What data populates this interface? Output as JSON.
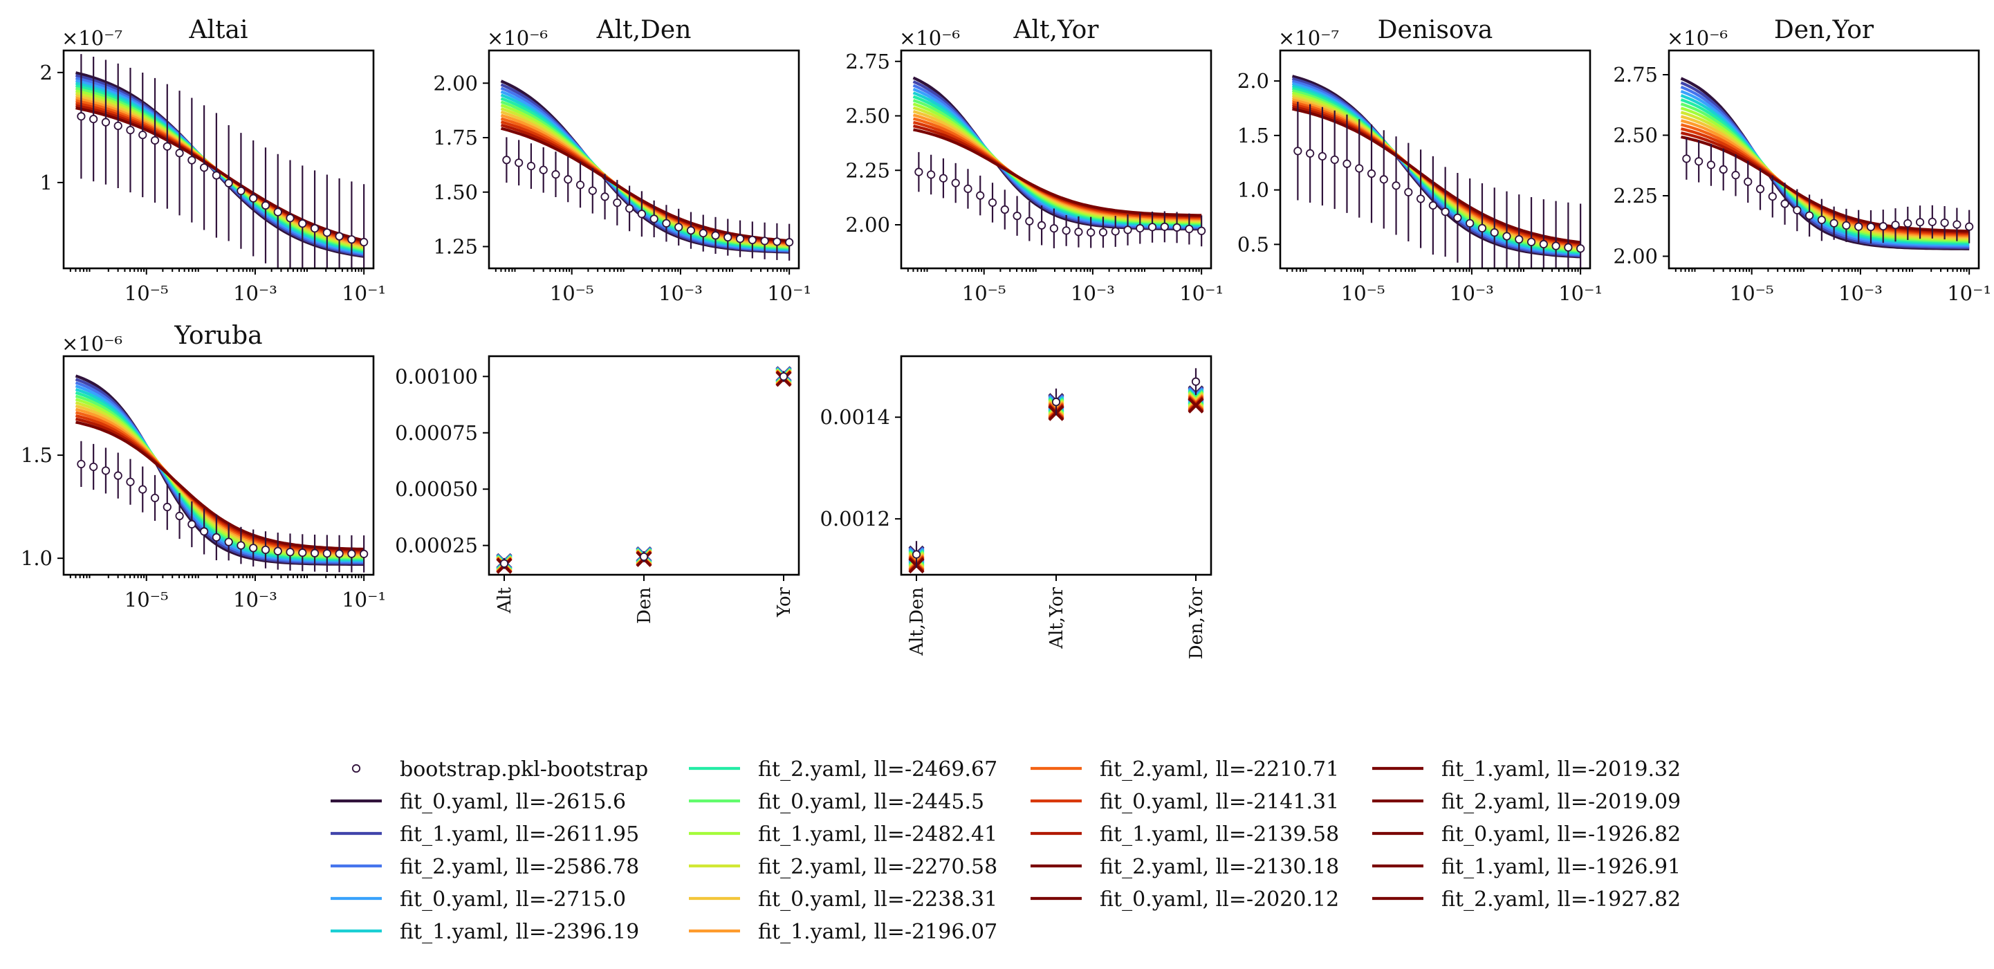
{
  "figure": {
    "fit_colors": [
      "#30123b",
      "#4145ab",
      "#4675ed",
      "#39a2fc",
      "#1bcfd4",
      "#24eca6",
      "#61fc6c",
      "#a4fc3b",
      "#d1e834",
      "#f3c63a",
      "#fe9b2d",
      "#f36315",
      "#d93806",
      "#b11901",
      "#7a0402"
    ]
  },
  "legend": {
    "entries": [
      "bootstrap.pkl-bootstrap",
      "fit_0.yaml, ll=-2615.6",
      "fit_1.yaml, ll=-2611.95",
      "fit_2.yaml, ll=-2586.78",
      "fit_0.yaml, ll=-2715.0",
      "fit_1.yaml, ll=-2396.19",
      "fit_2.yaml, ll=-2469.67",
      "fit_0.yaml, ll=-2445.5",
      "fit_1.yaml, ll=-2482.41",
      "fit_2.yaml, ll=-2270.58",
      "fit_0.yaml, ll=-2238.31",
      "fit_1.yaml, ll=-2196.07",
      "fit_2.yaml, ll=-2210.71",
      "fit_0.yaml, ll=-2141.31",
      "fit_1.yaml, ll=-2139.58",
      "fit_2.yaml, ll=-2130.18",
      "fit_0.yaml, ll=-2020.12",
      "fit_1.yaml, ll=-2019.32",
      "fit_2.yaml, ll=-2019.09",
      "fit_0.yaml, ll=-1926.82",
      "fit_1.yaml, ll=-1926.91",
      "fit_2.yaml, ll=-1927.82"
    ]
  },
  "chart_data": [
    {
      "type": "line",
      "title": "Altai",
      "xscale": "log",
      "xlim": [
        3e-07,
        0.15
      ],
      "ylim": [
        0.22,
        2.2
      ],
      "multiplier": "×10⁻⁷",
      "xticks": [
        {
          "v": 1e-05,
          "label": "10⁻⁵"
        },
        {
          "v": 0.001,
          "label": "10⁻³"
        },
        {
          "v": 0.1,
          "label": "10⁻¹"
        }
      ],
      "yticks": [
        {
          "v": 1,
          "label": "1"
        },
        {
          "v": 2,
          "label": "2"
        }
      ],
      "observed": {
        "hi": 1.72,
        "lo": 0.34,
        "center": -3.6,
        "width": 1.1,
        "err_rel": 0.15
      },
      "fits": {
        "hi_top": 2.1,
        "hi_bot": 1.8,
        "lo_top": 0.33,
        "lo_bot": 0.27,
        "center": -3.9,
        "width": 0.85
      }
    },
    {
      "type": "line",
      "title": "Alt,Den",
      "xscale": "log",
      "xlim": [
        3e-07,
        0.15
      ],
      "ylim": [
        1.15,
        2.15
      ],
      "multiplier": "×10⁻⁶",
      "xticks": [
        {
          "v": 1e-05,
          "label": "10⁻⁵"
        },
        {
          "v": 0.001,
          "label": "10⁻³"
        },
        {
          "v": 0.1,
          "label": "10⁻¹"
        }
      ],
      "yticks": [
        {
          "v": 1.25,
          "label": "1.25"
        },
        {
          "v": 1.5,
          "label": "1.50"
        },
        {
          "v": 1.75,
          "label": "1.75"
        },
        {
          "v": 2.0,
          "label": "2.00"
        }
      ],
      "observed": {
        "hi": 1.7,
        "lo": 1.26,
        "center": -4.4,
        "width": 0.9,
        "err_rel": 0.05
      },
      "fits": {
        "hi_top": 2.09,
        "hi_bot": 1.86,
        "lo_top": 1.26,
        "lo_bot": 1.22,
        "center": -4.7,
        "width": 0.7
      }
    },
    {
      "type": "line",
      "title": "Alt,Yor",
      "xscale": "log",
      "xlim": [
        3e-07,
        0.15
      ],
      "ylim": [
        1.8,
        2.8
      ],
      "multiplier": "×10⁻⁶",
      "xticks": [
        {
          "v": 1e-05,
          "label": "10⁻⁵"
        },
        {
          "v": 0.001,
          "label": "10⁻³"
        },
        {
          "v": 0.1,
          "label": "10⁻¹"
        }
      ],
      "yticks": [
        {
          "v": 2.0,
          "label": "2.00"
        },
        {
          "v": 2.25,
          "label": "2.25"
        },
        {
          "v": 2.5,
          "label": "2.50"
        },
        {
          "v": 2.75,
          "label": "2.75"
        }
      ],
      "observed": {
        "hi": 2.27,
        "lo": 1.95,
        "center": -4.9,
        "width": 0.55,
        "err_rel": 0.05,
        "bump": 0.04
      },
      "fits": {
        "hi_top": 2.74,
        "hi_bot": 2.48,
        "lo_top": 2.04,
        "lo_bot": 1.98,
        "center": -5.0,
        "width": 0.55
      }
    },
    {
      "type": "line",
      "title": "Denisova",
      "xscale": "log",
      "xlim": [
        3e-07,
        0.15
      ],
      "ylim": [
        0.28,
        2.28
      ],
      "multiplier": "×10⁻⁷",
      "xticks": [
        {
          "v": 1e-05,
          "label": "10⁻⁵"
        },
        {
          "v": 0.001,
          "label": "10⁻³"
        },
        {
          "v": 0.1,
          "label": "10⁻¹"
        }
      ],
      "yticks": [
        {
          "v": 0.5,
          "label": "0.5"
        },
        {
          "v": 1.0,
          "label": "1.0"
        },
        {
          "v": 1.5,
          "label": "1.5"
        },
        {
          "v": 2.0,
          "label": "2.0"
        }
      ],
      "observed": {
        "hi": 1.45,
        "lo": 0.42,
        "center": -4.0,
        "width": 0.95,
        "err_rel": 0.15
      },
      "fits": {
        "hi_top": 2.14,
        "hi_bot": 1.85,
        "lo_top": 0.46,
        "lo_bot": 0.37,
        "center": -4.3,
        "width": 0.7
      }
    },
    {
      "type": "line",
      "title": "Den,Yor",
      "xscale": "log",
      "xlim": [
        3e-07,
        0.15
      ],
      "ylim": [
        1.95,
        2.85
      ],
      "multiplier": "×10⁻⁶",
      "xticks": [
        {
          "v": 1e-05,
          "label": "10⁻⁵"
        },
        {
          "v": 0.001,
          "label": "10⁻³"
        },
        {
          "v": 0.1,
          "label": "10⁻¹"
        }
      ],
      "yticks": [
        {
          "v": 2.0,
          "label": "2.00"
        },
        {
          "v": 2.25,
          "label": "2.25"
        },
        {
          "v": 2.5,
          "label": "2.50"
        },
        {
          "v": 2.75,
          "label": "2.75"
        }
      ],
      "observed": {
        "hi": 2.43,
        "lo": 2.1,
        "center": -4.75,
        "width": 0.6,
        "err_rel": 0.05,
        "bump": 0.04
      },
      "fits": {
        "hi_top": 2.79,
        "hi_bot": 2.53,
        "lo_top": 2.1,
        "lo_bot": 2.03,
        "center": -4.9,
        "width": 0.55
      }
    },
    {
      "type": "line",
      "title": "Yoruba",
      "xscale": "log",
      "xlim": [
        3e-07,
        0.15
      ],
      "ylim": [
        0.92,
        1.98
      ],
      "multiplier": "×10⁻⁶",
      "xticks": [
        {
          "v": 1e-05,
          "label": "10⁻⁵"
        },
        {
          "v": 0.001,
          "label": "10⁻³"
        },
        {
          "v": 0.1,
          "label": "10⁻¹"
        }
      ],
      "yticks": [
        {
          "v": 1.0,
          "label": "1.0"
        },
        {
          "v": 1.5,
          "label": "1.5"
        }
      ],
      "observed": {
        "hi": 1.49,
        "lo": 1.02,
        "center": -4.65,
        "width": 0.6,
        "err_rel": 0.05
      },
      "fits": {
        "hi_top": 1.93,
        "hi_bot": 1.7,
        "lo_top": 1.04,
        "lo_bot": 0.97,
        "center": -4.8,
        "width": 0.5
      }
    },
    {
      "type": "scatter",
      "title": "",
      "ylim": [
        0.00012,
        0.00109
      ],
      "categories": [
        "Alt",
        "Den",
        "Yor"
      ],
      "values": [
        0.00017,
        0.0002,
        0.001
      ],
      "spread": 1.1e-05,
      "yticks": [
        {
          "v": 0.00025,
          "label": "0.00025"
        },
        {
          "v": 0.0005,
          "label": "0.00050"
        },
        {
          "v": 0.00075,
          "label": "0.00075"
        },
        {
          "v": 0.001,
          "label": "0.00100"
        }
      ]
    },
    {
      "type": "scatter",
      "title": "",
      "ylim": [
        0.00109,
        0.00152
      ],
      "categories": [
        "Alt,Den",
        "Alt,Yor",
        "Den,Yor"
      ],
      "values": [
        0.00113,
        0.00143,
        0.00147
      ],
      "fit_values": [
        0.00112,
        0.00142,
        0.001435
      ],
      "spread": 1.2e-05,
      "yticks": [
        {
          "v": 0.0012,
          "label": "0.0012"
        },
        {
          "v": 0.0014,
          "label": "0.0014"
        }
      ]
    }
  ]
}
